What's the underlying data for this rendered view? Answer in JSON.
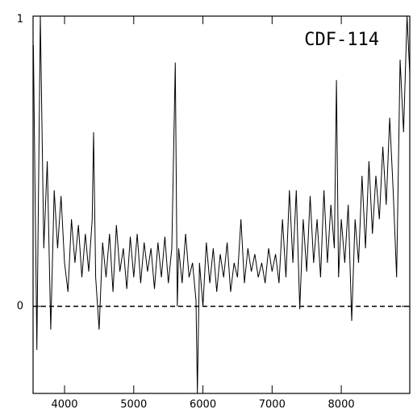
{
  "chart_data": {
    "type": "line",
    "annotation": "CDF-114",
    "x": [
      3550,
      3600,
      3650,
      3700,
      3750,
      3800,
      3850,
      3900,
      3950,
      4000,
      4050,
      4100,
      4150,
      4200,
      4250,
      4300,
      4350,
      4400,
      4420,
      4450,
      4500,
      4550,
      4600,
      4650,
      4700,
      4750,
      4800,
      4850,
      4900,
      4950,
      5000,
      5050,
      5100,
      5150,
      5200,
      5250,
      5300,
      5350,
      5400,
      5450,
      5500,
      5550,
      5600,
      5630,
      5650,
      5700,
      5750,
      5800,
      5850,
      5900,
      5920,
      5950,
      6000,
      6050,
      6100,
      6150,
      6200,
      6250,
      6300,
      6350,
      6400,
      6450,
      6500,
      6550,
      6600,
      6650,
      6700,
      6750,
      6800,
      6850,
      6900,
      6950,
      7000,
      7050,
      7100,
      7150,
      7200,
      7250,
      7300,
      7350,
      7400,
      7450,
      7500,
      7550,
      7600,
      7650,
      7700,
      7750,
      7800,
      7850,
      7900,
      7930,
      7960,
      8000,
      8050,
      8100,
      8150,
      8200,
      8250,
      8300,
      8350,
      8400,
      8450,
      8500,
      8550,
      8600,
      8650,
      8700,
      8750,
      8800,
      8850,
      8900,
      8950,
      8990
    ],
    "values": [
      0.9,
      -0.15,
      1.0,
      0.2,
      0.5,
      -0.08,
      0.4,
      0.2,
      0.38,
      0.15,
      0.05,
      0.3,
      0.15,
      0.28,
      0.1,
      0.25,
      0.12,
      0.3,
      0.6,
      0.1,
      -0.08,
      0.22,
      0.1,
      0.25,
      0.05,
      0.28,
      0.12,
      0.2,
      0.06,
      0.24,
      0.1,
      0.25,
      0.08,
      0.22,
      0.12,
      0.2,
      0.06,
      0.22,
      0.1,
      0.24,
      0.08,
      0.2,
      0.84,
      0.0,
      0.2,
      0.08,
      0.25,
      0.1,
      0.15,
      0.02,
      -0.3,
      0.15,
      0.0,
      0.22,
      0.08,
      0.2,
      0.05,
      0.18,
      0.1,
      0.22,
      0.05,
      0.15,
      0.1,
      0.3,
      0.08,
      0.2,
      0.12,
      0.18,
      0.1,
      0.15,
      0.08,
      0.2,
      0.12,
      0.18,
      0.08,
      0.3,
      0.1,
      0.4,
      0.15,
      0.4,
      -0.01,
      0.3,
      0.12,
      0.38,
      0.15,
      0.3,
      0.1,
      0.4,
      0.15,
      0.35,
      0.2,
      0.78,
      0.1,
      0.3,
      0.15,
      0.35,
      -0.05,
      0.3,
      0.15,
      0.45,
      0.2,
      0.5,
      0.25,
      0.45,
      0.3,
      0.55,
      0.35,
      0.65,
      0.4,
      0.1,
      0.85,
      0.6,
      1.0,
      0.8
    ],
    "color": "#000000",
    "xlim": [
      3545,
      8990
    ],
    "ylim": [
      -0.3,
      1
    ],
    "xticks": [
      4000,
      5000,
      6000,
      7000,
      8000
    ],
    "yticks": [
      0,
      1
    ],
    "zero_line": true
  }
}
